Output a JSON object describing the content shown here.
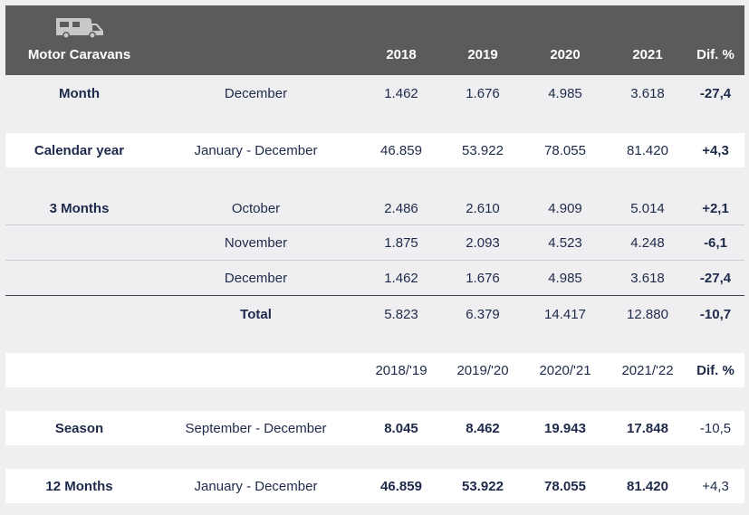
{
  "header": {
    "title": "Motor Caravans",
    "years": [
      "2018",
      "2019",
      "2020",
      "2021"
    ],
    "diff": "Dif. %"
  },
  "month": {
    "label": "Month",
    "period": "December",
    "values": [
      "1.462",
      "1.676",
      "4.985",
      "3.618"
    ],
    "diff": "-27,4"
  },
  "calendar": {
    "label": "Calendar year",
    "period": "January - December",
    "values": [
      "46.859",
      "53.922",
      "78.055",
      "81.420"
    ],
    "diff": "+4,3"
  },
  "three_months": {
    "label": "3 Months",
    "rows": [
      {
        "period": "October",
        "values": [
          "2.486",
          "2.610",
          "4.909",
          "5.014"
        ],
        "diff": "+2,1"
      },
      {
        "period": "November",
        "values": [
          "1.875",
          "2.093",
          "4.523",
          "4.248"
        ],
        "diff": "-6,1"
      },
      {
        "period": "December",
        "values": [
          "1.462",
          "1.676",
          "4.985",
          "3.618"
        ],
        "diff": "-27,4"
      }
    ],
    "total": {
      "label": "Total",
      "values": [
        "5.823",
        "6.379",
        "14.417",
        "12.880"
      ],
      "diff": "-10,7"
    }
  },
  "season_header": {
    "years": [
      "2018/'19",
      "2019/'20",
      "2020/'21",
      "2021/'22"
    ],
    "diff": "Dif. %"
  },
  "season": {
    "label": "Season",
    "period": "September - December",
    "values": [
      "8.045",
      "8.462",
      "19.943",
      "17.848"
    ],
    "diff": "-10,5"
  },
  "twelve_months": {
    "label": "12 Months",
    "period": "January - December",
    "values": [
      "46.859",
      "53.922",
      "78.055",
      "81.420"
    ],
    "diff": "+4,3"
  }
}
